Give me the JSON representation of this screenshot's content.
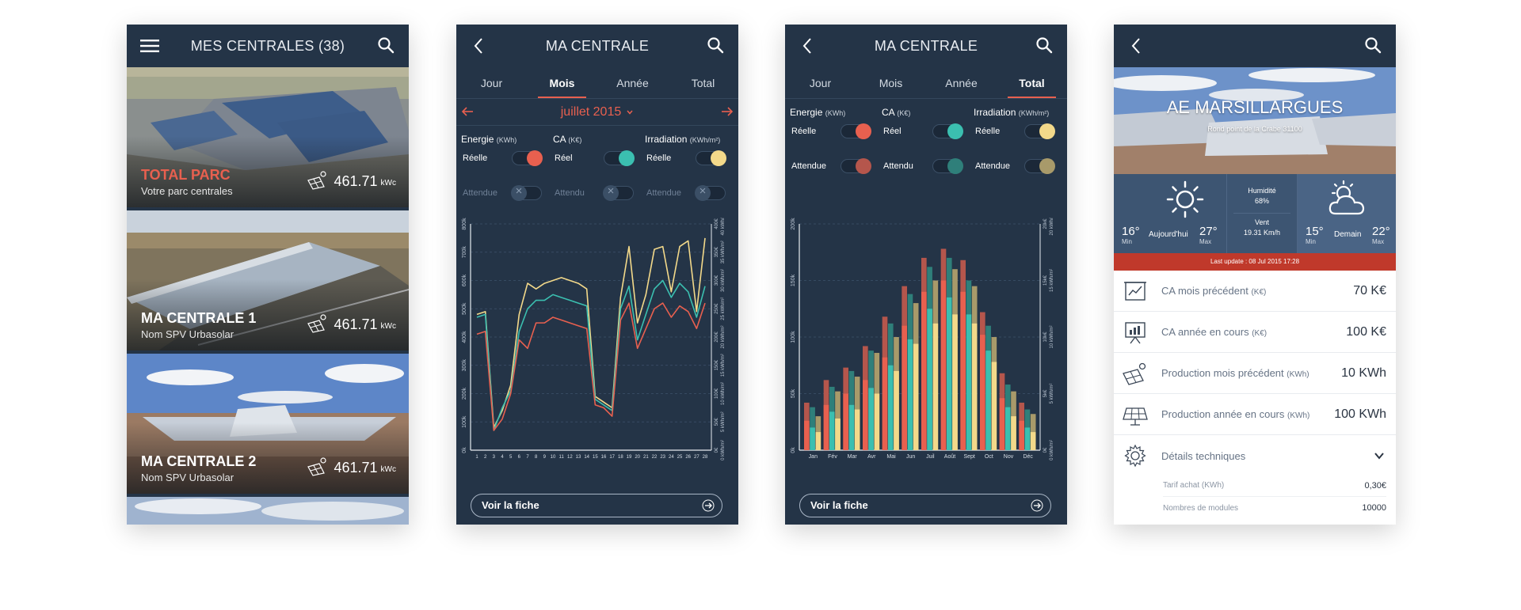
{
  "list_screen": {
    "title": "MES CENTRALES (38)",
    "cards": [
      {
        "name": "TOTAL PARC",
        "subtitle": "Votre parc centrales",
        "power": "461.71",
        "unit": "kWc"
      },
      {
        "name": "MA CENTRALE 1",
        "subtitle": "Nom SPV Urbasolar",
        "power": "461.71",
        "unit": "kWc"
      },
      {
        "name": "MA CENTRALE 2",
        "subtitle": "Nom SPV Urbasolar",
        "power": "461.71",
        "unit": "kWc"
      }
    ]
  },
  "month_screen": {
    "title": "MA CENTRALE",
    "tabs": [
      "Jour",
      "Mois",
      "Année",
      "Total"
    ],
    "active_tab": "Mois",
    "date": "juillet 2015",
    "legend": {
      "energy": {
        "label": "Energie",
        "unit": "(KWh)",
        "real": "Réelle",
        "expected": "Attendue"
      },
      "ca": {
        "label": "CA",
        "unit": "(K€)",
        "real": "Réel",
        "expected": "Attendu"
      },
      "irr": {
        "label": "Irradiation",
        "unit": "(KWh/m²)",
        "real": "Réelle",
        "expected": "Attendue"
      }
    },
    "button": "Voir la fiche"
  },
  "total_screen": {
    "title": "MA CENTRALE",
    "tabs": [
      "Jour",
      "Mois",
      "Année",
      "Total"
    ],
    "active_tab": "Total",
    "legend": {
      "energy": {
        "label": "Energie",
        "unit": "(KWh)",
        "real": "Réelle",
        "expected": "Attendue"
      },
      "ca": {
        "label": "CA",
        "unit": "(K€)",
        "real": "Réel",
        "expected": "Attendu"
      },
      "irr": {
        "label": "Irradiation",
        "unit": "(KWh/m²)",
        "real": "Réelle",
        "expected": "Attendue"
      }
    },
    "button": "Voir la fiche"
  },
  "detail_screen": {
    "site_name": "AE MARSILLARGUES",
    "address": "Rond point de la Crabe 31100",
    "weather": {
      "today_min": "16°",
      "today_min_label": "Min",
      "today_label": "Aujourd'hui",
      "today_max": "27°",
      "today_max_label": "Max",
      "humidity_label": "Humidité",
      "humidity": "68%",
      "wind_label": "Vent",
      "wind": "19.31 Km/h",
      "tomorrow_min": "15°",
      "tomorrow_min_label": "Min",
      "tomorrow_label": "Demain",
      "tomorrow_max": "22°",
      "tomorrow_max_label": "Max"
    },
    "last_update": "Last update : 08 Jul 2015 17:28",
    "rows": [
      {
        "label": "CA mois précédent",
        "unit": "(K€)",
        "value": "70 K€",
        "icon": "chart-board-icon"
      },
      {
        "label": "CA année en cours",
        "unit": "(K€)",
        "value": "100 K€",
        "icon": "presentation-icon"
      },
      {
        "label": "Production mois précédent",
        "unit": "(KWh)",
        "value": "10 KWh",
        "icon": "solar-sun-icon"
      },
      {
        "label": "Production année en cours",
        "unit": "(KWh)",
        "value": "100 KWh",
        "icon": "solar-panel-icon"
      }
    ],
    "tech": {
      "label": "Détails techniques",
      "items": [
        {
          "label": "Tarif achat (KWh)",
          "value": "0,30€"
        },
        {
          "label": "Nombres de modules",
          "value": "10000"
        }
      ]
    }
  },
  "colors": {
    "navy": "#243447",
    "energy": "#e8604f",
    "ca": "#3bbfb0",
    "irradiation": "#f3d98a",
    "alert": "#c0392b"
  },
  "chart_data": [
    {
      "type": "line",
      "x": [
        1,
        2,
        3,
        4,
        5,
        6,
        7,
        8,
        9,
        10,
        11,
        12,
        13,
        14,
        15,
        16,
        17,
        18,
        19,
        20,
        21,
        22,
        23,
        24,
        25,
        26,
        27,
        28
      ],
      "ylim": [
        0,
        800
      ],
      "left_ticks": [
        "0k",
        "100k",
        "200k",
        "300k",
        "400k",
        "500k",
        "600k",
        "700k",
        "800k"
      ],
      "right_ticks_ca": [
        "0€",
        "50€",
        "100€",
        "150€",
        "200€",
        "250€",
        "300€",
        "350€",
        "400€"
      ],
      "right_ticks_irr": [
        "0 kWh/m²",
        "5 kWh/m²",
        "10 kWh/m²",
        "15 kWh/m²",
        "20 kWh/m²",
        "25 kWh/m²",
        "30 kWh/m²",
        "35 kWh/m²",
        "40 kWh/m²"
      ],
      "series": [
        {
          "name": "Energie",
          "color": "#e8604f",
          "values": [
            410,
            420,
            70,
            110,
            200,
            390,
            360,
            450,
            450,
            470,
            460,
            450,
            440,
            430,
            160,
            150,
            120,
            460,
            520,
            360,
            430,
            500,
            520,
            470,
            510,
            490,
            430,
            520
          ]
        },
        {
          "name": "CA",
          "color": "#3bbfb0",
          "values": [
            470,
            480,
            70,
            150,
            210,
            420,
            500,
            530,
            530,
            550,
            540,
            530,
            520,
            510,
            180,
            160,
            140,
            500,
            580,
            390,
            480,
            570,
            600,
            540,
            590,
            560,
            470,
            580
          ]
        },
        {
          "name": "Irradiation",
          "color": "#f3d98a",
          "values": [
            480,
            490,
            80,
            140,
            230,
            480,
            590,
            570,
            590,
            600,
            610,
            600,
            590,
            570,
            190,
            170,
            150,
            540,
            720,
            450,
            550,
            710,
            720,
            560,
            720,
            740,
            490,
            750
          ]
        }
      ]
    },
    {
      "type": "bar",
      "categories": [
        "Jan",
        "Fév",
        "Mar",
        "Avr",
        "Mai",
        "Jun",
        "Juil",
        "Août",
        "Sept",
        "Oct",
        "Nov",
        "Déc"
      ],
      "ylim": [
        0,
        200
      ],
      "left_ticks": [
        "0k",
        "50k",
        "100k",
        "150k",
        "200k"
      ],
      "right_ticks_ca": [
        "0€",
        "5k€",
        "10k€",
        "15k€",
        "20k€"
      ],
      "right_ticks_irr": [
        "0 kWh/m²",
        "5 kWh/m²",
        "10 kWh/m²",
        "15 kWh/m²",
        "20 kWh/m²"
      ],
      "series": [
        {
          "name": "Energie",
          "color": "#e8604f",
          "values": [
            [
              42,
              26
            ],
            [
              62,
              40
            ],
            [
              73,
              50
            ],
            [
              92,
              62
            ],
            [
              118,
              82
            ],
            [
              145,
              110
            ],
            [
              170,
              140
            ],
            [
              178,
              150
            ],
            [
              168,
              140
            ],
            [
              122,
              102
            ],
            [
              68,
              46
            ],
            [
              42,
              26
            ]
          ]
        },
        {
          "name": "CA",
          "color": "#3bbfb0",
          "values": [
            [
              38,
              20
            ],
            [
              56,
              34
            ],
            [
              70,
              40
            ],
            [
              88,
              55
            ],
            [
              112,
              75
            ],
            [
              138,
              98
            ],
            [
              162,
              125
            ],
            [
              170,
              135
            ],
            [
              150,
              120
            ],
            [
              110,
              88
            ],
            [
              58,
              38
            ],
            [
              36,
              20
            ]
          ]
        },
        {
          "name": "Irradiation",
          "color": "#f3d98a",
          "values": [
            [
              30,
              16
            ],
            [
              52,
              28
            ],
            [
              65,
              36
            ],
            [
              86,
              50
            ],
            [
              100,
              70
            ],
            [
              130,
              94
            ],
            [
              150,
              112
            ],
            [
              160,
              120
            ],
            [
              145,
              112
            ],
            [
              100,
              78
            ],
            [
              52,
              30
            ],
            [
              32,
              16
            ]
          ]
        }
      ]
    }
  ]
}
